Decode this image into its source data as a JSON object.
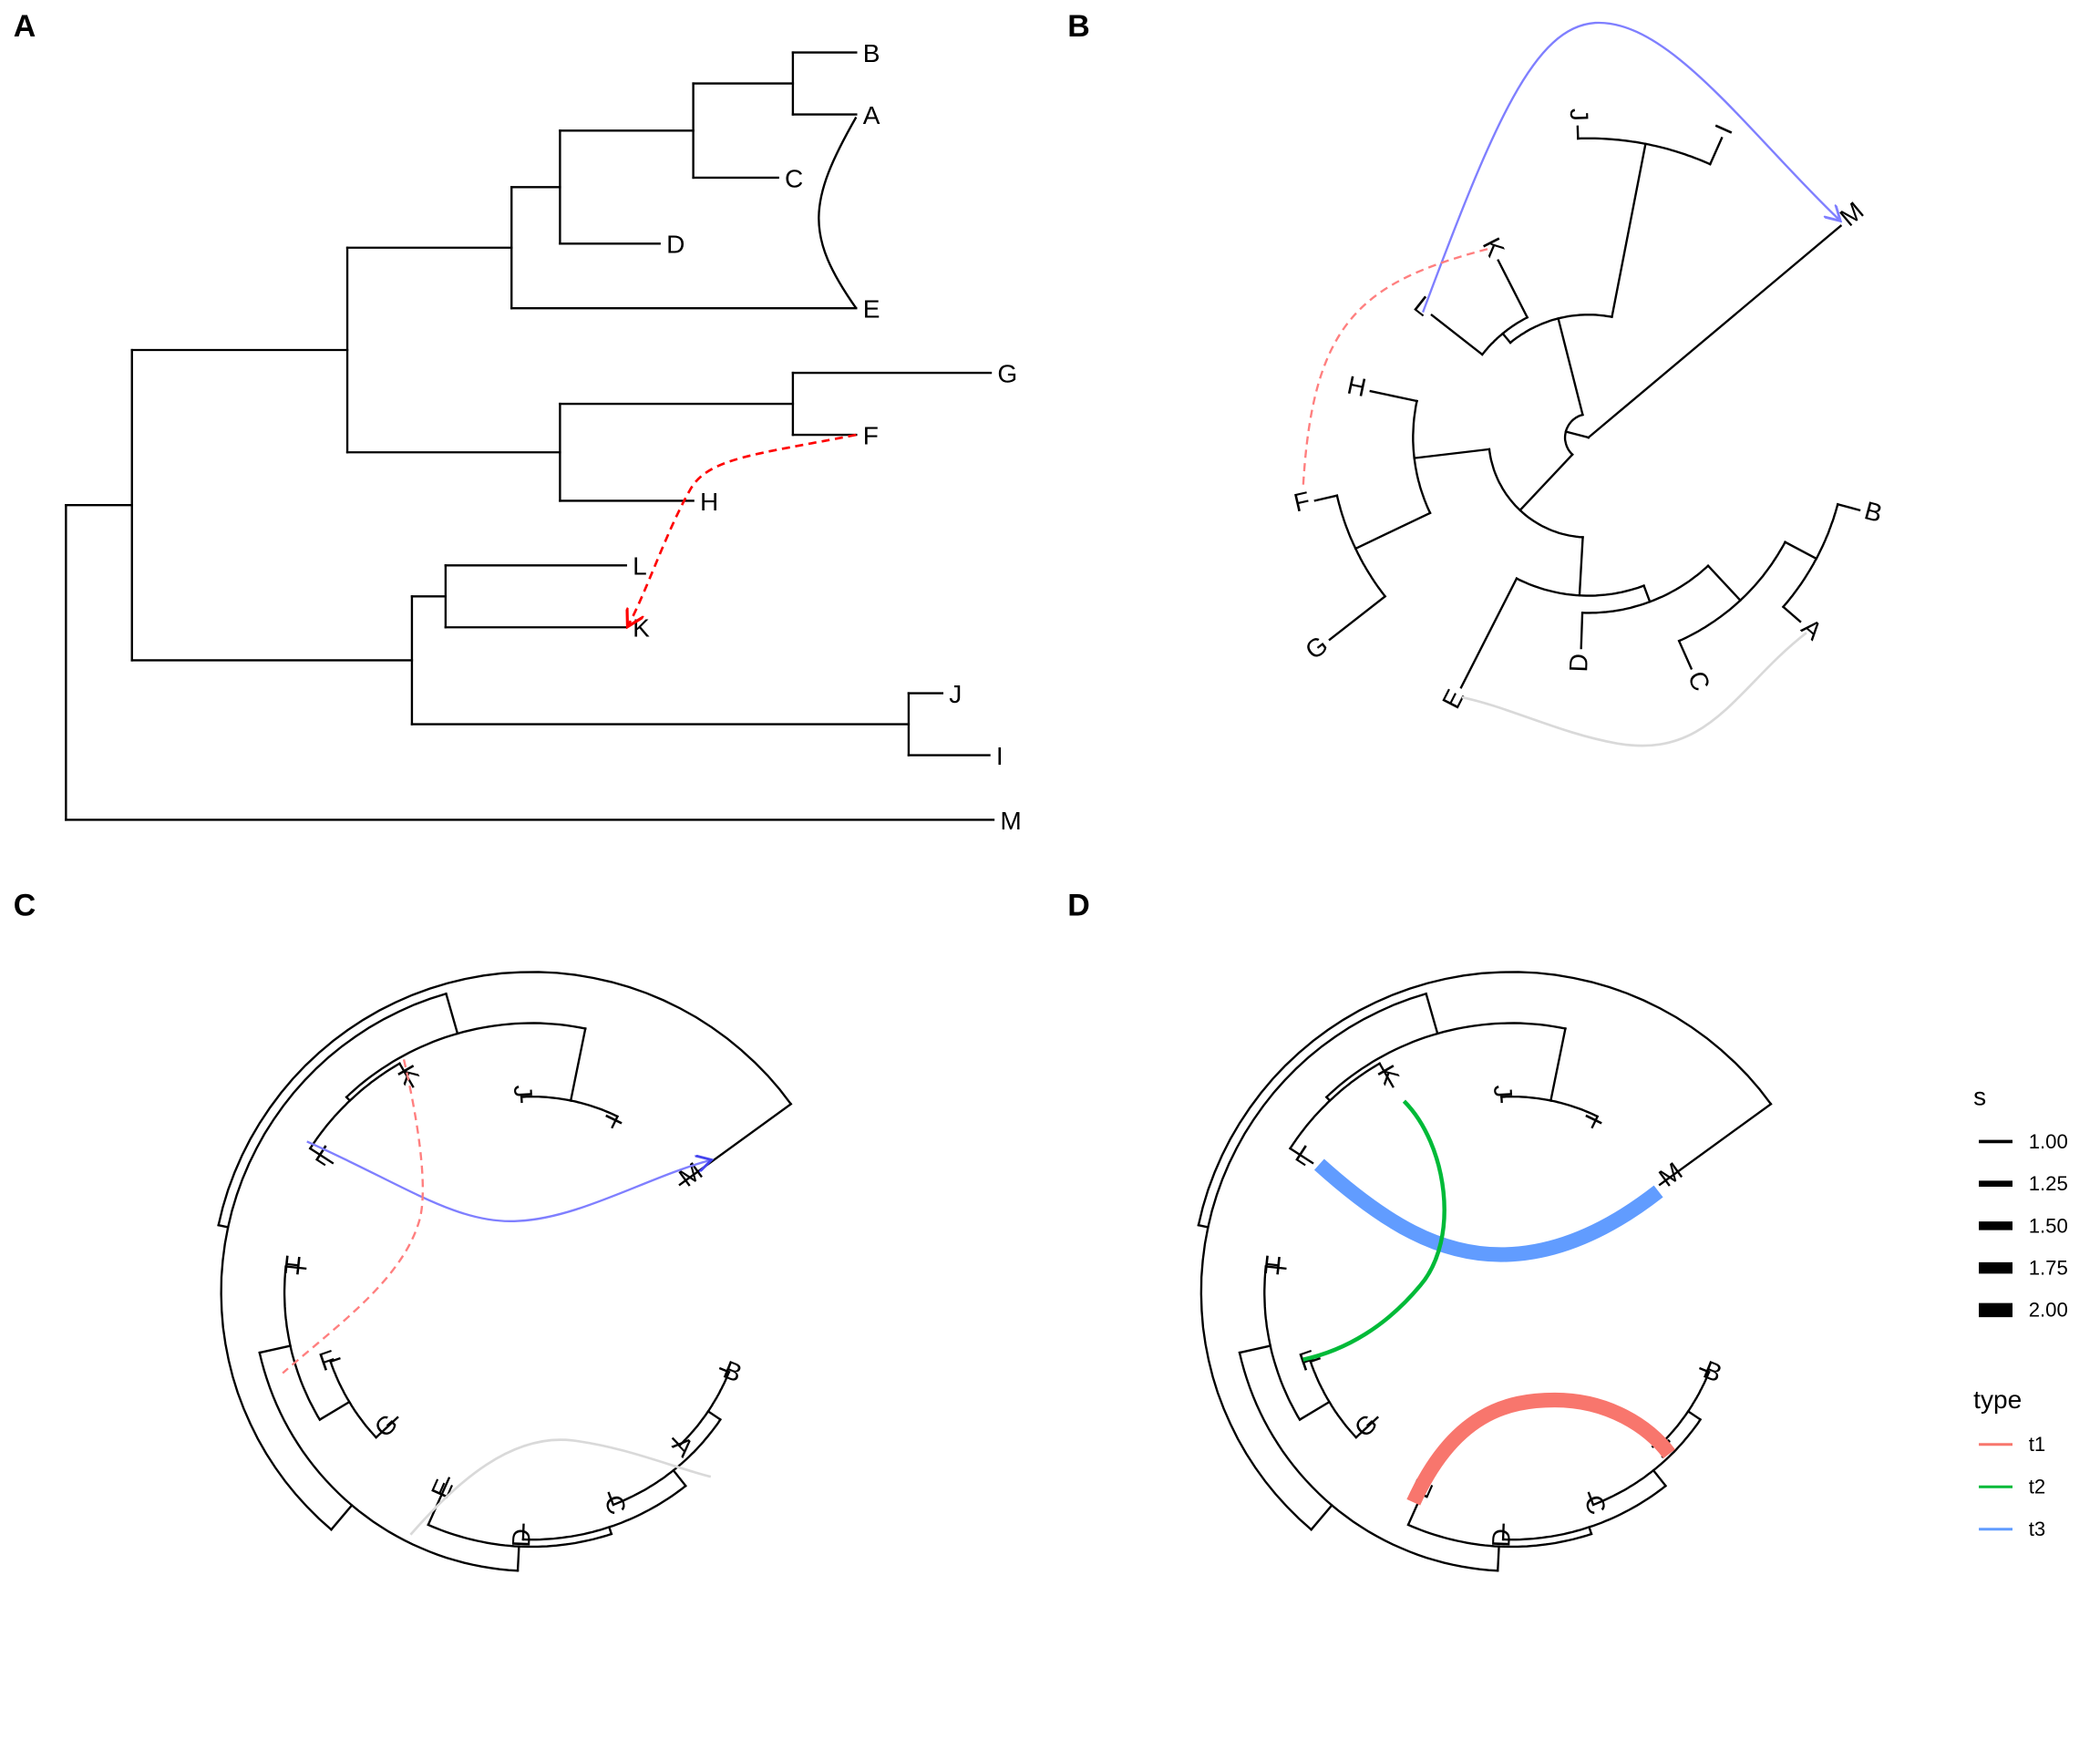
{
  "figure": {
    "panels": [
      {
        "letter": "A",
        "layout": "rectangular"
      },
      {
        "letter": "B",
        "layout": "circular"
      },
      {
        "letter": "C",
        "layout": "inward-circular"
      },
      {
        "letter": "D",
        "layout": "inward-circular"
      }
    ],
    "tips": [
      "B",
      "A",
      "C",
      "D",
      "E",
      "G",
      "F",
      "H",
      "L",
      "K",
      "J",
      "I",
      "M"
    ],
    "links": {
      "A": [
        {
          "from": "A",
          "to": "E",
          "color": "#000000",
          "style": "solid"
        },
        {
          "from": "F",
          "to": "K",
          "via": "H",
          "color": "#FF0000",
          "style": "dashed",
          "arrow": true
        }
      ],
      "B": [
        {
          "from": "L",
          "to": "M",
          "color": "#7F7FFF",
          "style": "solid",
          "arrow": true
        },
        {
          "from": "K",
          "to": "F",
          "color": "#FF7F7F",
          "style": "dashed"
        },
        {
          "from": "A",
          "to": "E",
          "color": "#D9D9D9",
          "style": "solid"
        }
      ],
      "C": [
        {
          "from": "L",
          "to": "M",
          "color": "#7F7FFF",
          "style": "solid",
          "arrow": true
        },
        {
          "from": "K",
          "to": "F",
          "color": "#FF7F7F",
          "style": "dashed"
        },
        {
          "from": "E",
          "to": "A",
          "color": "#D9D9D9",
          "style": "solid"
        }
      ],
      "D": [
        {
          "from": "L",
          "to": "M",
          "type": "t3",
          "s": 2.0
        },
        {
          "from": "K",
          "to": "F",
          "type": "t2",
          "s": 1.0
        },
        {
          "from": "E",
          "to": "A",
          "type": "t1",
          "s": 2.0
        }
      ]
    }
  },
  "legend": {
    "size": {
      "title": "s",
      "items": [
        {
          "label": "1.00",
          "value": 1.0
        },
        {
          "label": "1.25",
          "value": 1.25
        },
        {
          "label": "1.50",
          "value": 1.5
        },
        {
          "label": "1.75",
          "value": 1.75
        },
        {
          "label": "2.00",
          "value": 2.0
        }
      ]
    },
    "type": {
      "title": "type",
      "items": [
        {
          "label": "t1",
          "color": "#F8766D"
        },
        {
          "label": "t2",
          "color": "#00BA38"
        },
        {
          "label": "t3",
          "color": "#619CFF"
        }
      ]
    }
  }
}
